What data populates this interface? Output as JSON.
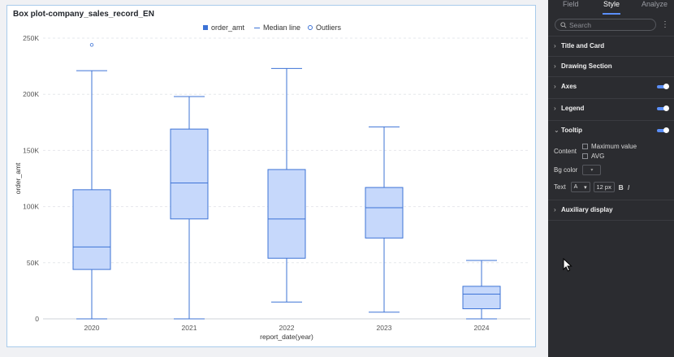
{
  "card": {
    "title": "Box plot-company_sales_record_EN"
  },
  "legend": {
    "items": [
      "order_amt",
      "Median line",
      "Outliers"
    ]
  },
  "colors": {
    "accent": "#3d73d6",
    "box_fill": "#c6d8fb",
    "panel_bg": "#2b2c30",
    "toggle": "#5b8ff9"
  },
  "chart_data": {
    "type": "boxplot",
    "title": "Box plot-company_sales_record_EN",
    "xlabel": "report_date(year)",
    "ylabel": "order_amt",
    "ylim": [
      0,
      250000
    ],
    "y_ticks": [
      0,
      50000,
      100000,
      150000,
      200000,
      250000
    ],
    "y_tick_labels": [
      "0",
      "50K",
      "100K",
      "150K",
      "200K",
      "250K"
    ],
    "categories": [
      "2020",
      "2021",
      "2022",
      "2023",
      "2024"
    ],
    "series": [
      {
        "name": "order_amt",
        "boxes": [
          {
            "min": 0,
            "q1": 44000,
            "median": 64000,
            "q3": 115000,
            "max": 221000,
            "outliers": [
              244000
            ]
          },
          {
            "min": 0,
            "q1": 89000,
            "median": 121000,
            "q3": 169000,
            "max": 198000,
            "outliers": []
          },
          {
            "min": 15000,
            "q1": 54000,
            "median": 89000,
            "q3": 133000,
            "max": 223000,
            "outliers": []
          },
          {
            "min": 6000,
            "q1": 72000,
            "median": 99000,
            "q3": 117000,
            "max": 171000,
            "outliers": []
          },
          {
            "min": 0,
            "q1": 9000,
            "median": 22000,
            "q3": 29000,
            "max": 52000,
            "outliers": []
          }
        ]
      }
    ],
    "grid": true,
    "legend": "top-center"
  },
  "panel": {
    "tabs": [
      "Field",
      "Style",
      "Analyze"
    ],
    "active_tab": "Style",
    "search_placeholder": "Search",
    "more_icon": "more-vertical-icon",
    "sections": {
      "title_card": "Title and Card",
      "drawing": "Drawing Section",
      "axes": "Axes",
      "legend": "Legend",
      "tooltip": "Tooltip",
      "auxiliary": "Auxiliary display"
    },
    "tooltip": {
      "content_label": "Content",
      "max_value": "Maximum value",
      "avg": "AVG",
      "bg_color_label": "Bg color",
      "text_label": "Text",
      "font_value": "A",
      "size_value": "12 px",
      "bold": "B",
      "italic": "I"
    }
  }
}
